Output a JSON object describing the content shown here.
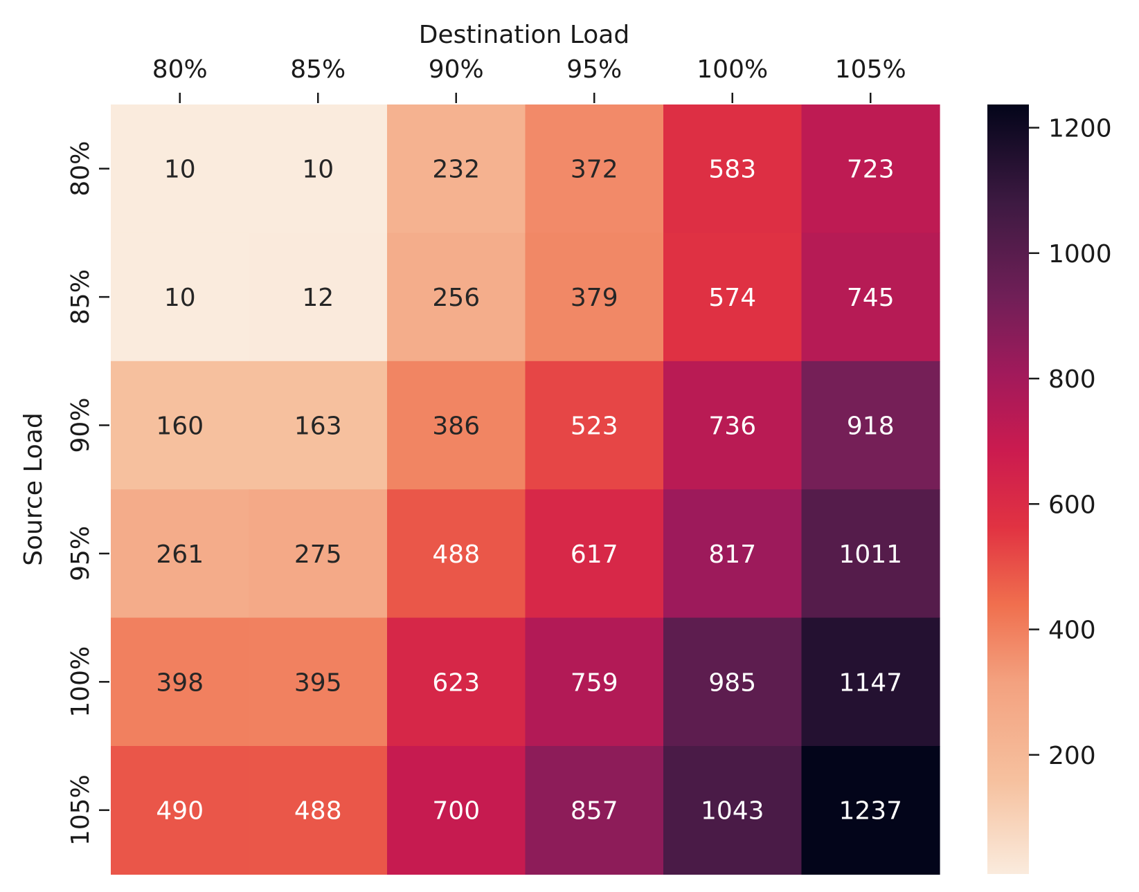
{
  "chart_data": {
    "type": "heatmap",
    "xlabel": "Destination Load",
    "ylabel": "Source Load",
    "x_categories": [
      "80%",
      "85%",
      "90%",
      "95%",
      "100%",
      "105%"
    ],
    "y_categories": [
      "80%",
      "85%",
      "90%",
      "95%",
      "100%",
      "105%"
    ],
    "values": [
      [
        10,
        10,
        232,
        372,
        583,
        723
      ],
      [
        10,
        12,
        256,
        379,
        574,
        745
      ],
      [
        160,
        163,
        386,
        523,
        736,
        918
      ],
      [
        261,
        275,
        488,
        617,
        817,
        1011
      ],
      [
        398,
        395,
        623,
        759,
        985,
        1147
      ],
      [
        490,
        488,
        700,
        857,
        1043,
        1237
      ]
    ],
    "colorbar": {
      "min": 10,
      "max": 1237,
      "ticks": [
        "200",
        "400",
        "600",
        "800",
        "1000",
        "1200"
      ],
      "colormap": "rocket_r"
    },
    "x_axis_position": "top",
    "grid": false
  }
}
